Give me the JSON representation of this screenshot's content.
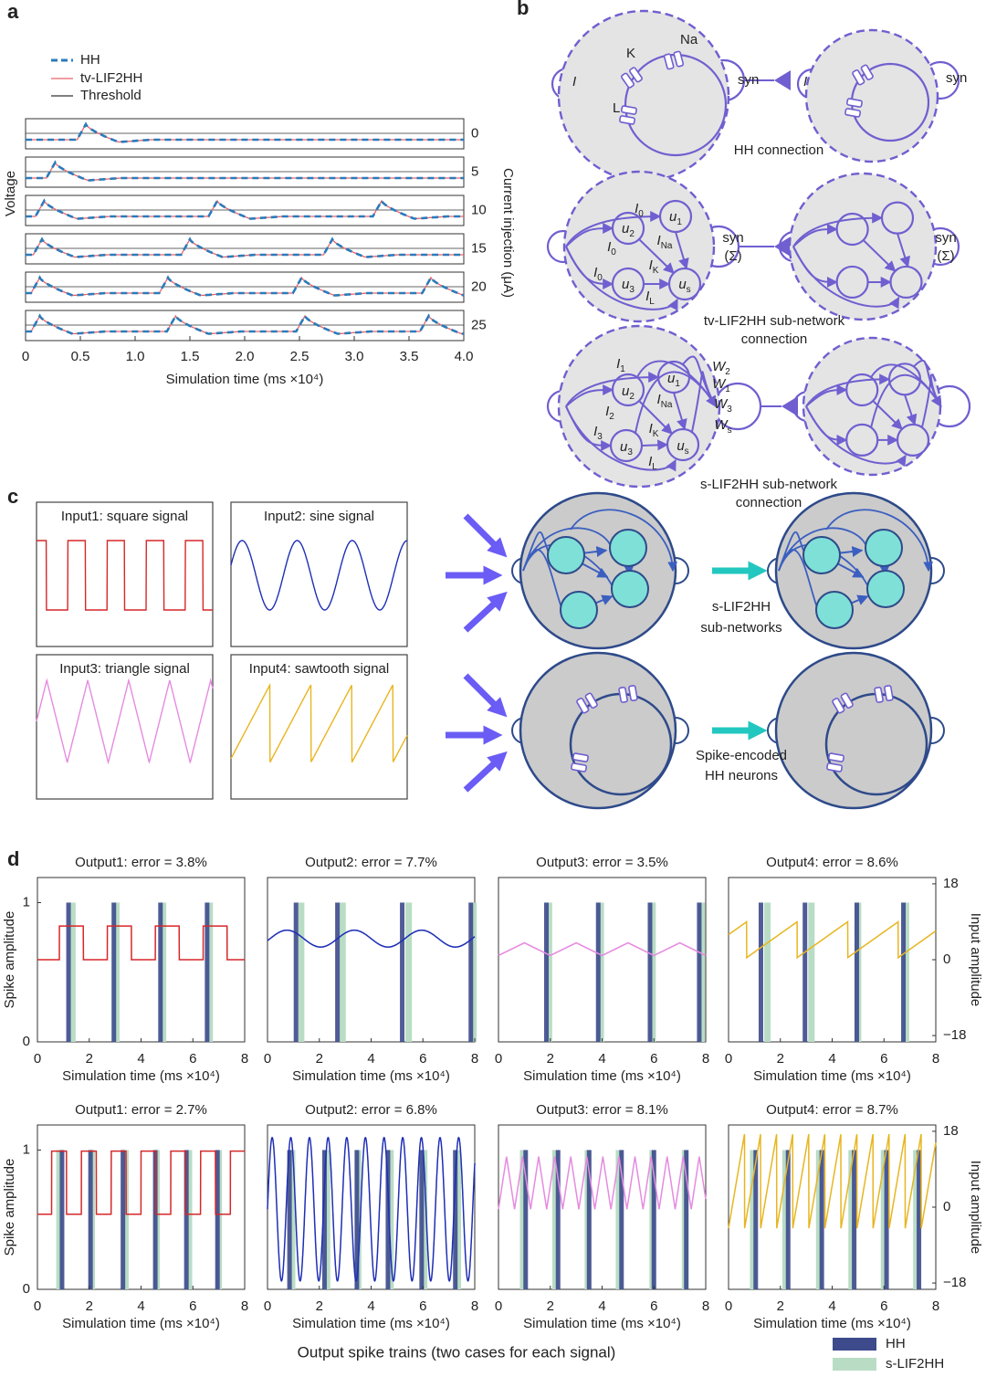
{
  "panel_labels": [
    "a",
    "b",
    "c",
    "d"
  ],
  "chart_data": [
    {
      "type": "line",
      "ylabel": "Voltage",
      "xlabel": "Simulation time (ms ×10⁴)",
      "y2label": "Current injection (μA)",
      "xlim": [
        0,
        4
      ],
      "xticks": [
        0,
        0.5,
        {
          "value": 1,
          "label": "1.0"
        },
        1.5,
        {
          "value": 2,
          "label": "2.0"
        },
        2.5,
        {
          "value": 3,
          "label": "3.0"
        },
        3.5,
        {
          "value": 4,
          "label": "4.0"
        }
      ],
      "series": [
        {
          "name": "HH",
          "color": "#2b7bba"
        },
        {
          "name": "tv-LIF2HH",
          "color": "#e8636b"
        },
        {
          "name": "Threshold",
          "color": "#333333"
        }
      ],
      "currents": [
        0,
        5,
        10,
        15,
        20,
        25
      ],
      "spike_times": [
        [
          0.55
        ],
        [
          0.27
        ],
        [
          0.17,
          1.75,
          3.25
        ],
        [
          0.15,
          1.5,
          2.8
        ],
        [
          0.13,
          1.3,
          2.52,
          3.7
        ],
        [
          0.13,
          1.37,
          2.55,
          3.68
        ]
      ]
    },
    {
      "type": "spike-train",
      "title": "Output1: error = 3.8%",
      "xlabel": "Simulation time (ms ×10⁴)",
      "ylabel": "Spike amplitude",
      "xlim": [
        0,
        8
      ],
      "xticks": [
        0,
        2,
        4,
        6,
        8
      ],
      "ylim": [
        0,
        1.18
      ],
      "yticks": [
        0,
        1
      ],
      "y2lim": [
        -19.5,
        19.5
      ],
      "series": [
        {
          "name": "HH",
          "color": "#3d4a8c",
          "x": [
            1.2,
            2.95,
            4.75,
            6.55
          ],
          "values": [
            1,
            1,
            1,
            1
          ]
        },
        {
          "name": "s-LIF2HH",
          "color": "#b9dcc5",
          "x": [
            1.35,
            3.05,
            4.85,
            6.65
          ],
          "values": [
            1,
            1,
            1,
            1
          ]
        }
      ],
      "input": {
        "shape": "square",
        "color": "#d62728",
        "low": 0,
        "high": 8,
        "period": 1.85,
        "phase": 0.85,
        "axis": "y2"
      }
    },
    {
      "type": "spike-train",
      "title": "Output2: error = 7.7%",
      "xlabel": "Simulation time (ms ×10⁴)",
      "xlim": [
        0,
        8
      ],
      "xticks": [
        0,
        2,
        4,
        6,
        8
      ],
      "ylim": [
        0,
        1.18
      ],
      "y2lim": [
        -19.5,
        19.5
      ],
      "series": [
        {
          "name": "HH",
          "color": "#3d4a8c",
          "x": [
            1.1,
            2.7,
            5.2,
            7.85
          ],
          "values": [
            1,
            1,
            1,
            1
          ]
        },
        {
          "name": "s-LIF2HH",
          "color": "#b9dcc5",
          "x": [
            1.3,
            2.9,
            5.45,
            7.95
          ],
          "values": [
            1,
            1,
            1,
            1
          ]
        }
      ],
      "input": {
        "shape": "sine",
        "color": "#1f2fb5",
        "low": 3,
        "high": 7,
        "period": 2.6,
        "phase": 0.1,
        "axis": "y2"
      }
    },
    {
      "type": "spike-train",
      "title": "Output3: error = 3.5%",
      "xlabel": "Simulation time (ms ×10⁴)",
      "xlim": [
        0,
        8
      ],
      "xticks": [
        0,
        2,
        4,
        6,
        8
      ],
      "ylim": [
        0,
        1.18
      ],
      "y2lim": [
        -19.5,
        19.5
      ],
      "series": [
        {
          "name": "HH",
          "color": "#3d4a8c",
          "x": [
            1.85,
            3.85,
            5.85,
            7.75
          ],
          "values": [
            1,
            1,
            1,
            1
          ]
        },
        {
          "name": "s-LIF2HH",
          "color": "#b9dcc5",
          "x": [
            1.95,
            3.95,
            5.95,
            7.85
          ],
          "values": [
            1,
            1,
            1,
            1
          ]
        }
      ],
      "input": {
        "shape": "triangle",
        "color": "#e58be0",
        "low": 1,
        "high": 4,
        "period": 2.0,
        "phase": 0,
        "axis": "y2"
      }
    },
    {
      "type": "spike-train",
      "title": "Output4: error = 8.6%",
      "xlabel": "Simulation time (ms ×10⁴)",
      "y2label": "Input amplitude",
      "xlim": [
        0,
        8
      ],
      "xticks": [
        0,
        2,
        4,
        6,
        8
      ],
      "ylim": [
        0,
        1.18
      ],
      "y2lim": [
        -19.5,
        19.5
      ],
      "y2ticks": [
        {
          "value": -18,
          "label": "−18"
        },
        0,
        18
      ],
      "series": [
        {
          "name": "HH",
          "color": "#3d4a8c",
          "x": [
            1.25,
            2.95,
            4.95,
            6.75
          ],
          "values": [
            1,
            1,
            1,
            1
          ]
        },
        {
          "name": "s-LIF2HH",
          "color": "#b9dcc5",
          "x": [
            1.5,
            3.2,
            5.0,
            6.85
          ],
          "values": [
            1,
            1,
            1,
            1
          ]
        }
      ],
      "input": {
        "shape": "sawtooth",
        "color": "#e8b520",
        "low": 0.5,
        "high": 9,
        "period": 1.95,
        "phase": 0.7,
        "axis": "y2"
      }
    },
    {
      "type": "spike-train",
      "title": "Output1: error = 2.7%",
      "xlabel": "Simulation time (ms ×10⁴)",
      "ylabel": "Spike amplitude",
      "xlim": [
        0,
        8
      ],
      "xticks": [
        0,
        2,
        4,
        6,
        8
      ],
      "ylim": [
        0,
        1.18
      ],
      "yticks": [
        0,
        1
      ],
      "y2lim": [
        -19.5,
        19.5
      ],
      "series": [
        {
          "name": "HH",
          "color": "#3d4a8c",
          "x": [
            0.95,
            2.05,
            3.3,
            4.55,
            5.75,
            6.95
          ],
          "values": [
            1,
            1,
            1,
            1,
            1,
            1
          ]
        },
        {
          "name": "s-LIF2HH",
          "color": "#b9dcc5",
          "x": [
            0.85,
            2.1,
            3.4,
            4.6,
            5.85,
            7.0
          ],
          "values": [
            1,
            1,
            1,
            1,
            1,
            1
          ]
        }
      ],
      "input": {
        "shape": "square",
        "color": "#d62728",
        "low": -1.7,
        "high": 13.3,
        "period": 1.15,
        "phase": 0.55,
        "axis": "y2"
      }
    },
    {
      "type": "spike-train",
      "title": "Output2: error = 6.8%",
      "xlabel": "Simulation time (ms ×10⁴)",
      "xlim": [
        0,
        8
      ],
      "xticks": [
        0,
        2,
        4,
        6,
        8
      ],
      "ylim": [
        0,
        1.18
      ],
      "y2lim": [
        -19.5,
        19.5
      ],
      "series": [
        {
          "name": "HH",
          "color": "#3d4a8c",
          "x": [
            0.85,
            2.2,
            3.45,
            4.65,
            5.95,
            7.25
          ],
          "values": [
            1,
            1,
            1,
            1,
            1,
            1
          ]
        },
        {
          "name": "s-LIF2HH",
          "color": "#b9dcc5",
          "x": [
            0.95,
            2.3,
            3.5,
            4.75,
            6.05,
            7.35
          ],
          "values": [
            1,
            1,
            1,
            1,
            1,
            1
          ]
        }
      ],
      "input": {
        "shape": "sine",
        "color": "#1f2fb5",
        "low": -17.5,
        "high": 16.5,
        "period": 0.72,
        "phase": 0,
        "axis": "y2"
      }
    },
    {
      "type": "spike-train",
      "title": "Output3: error = 8.1%",
      "xlabel": "Simulation time (ms ×10⁴)",
      "xlim": [
        0,
        8
      ],
      "xticks": [
        0,
        2,
        4,
        6,
        8
      ],
      "ylim": [
        0,
        1.18
      ],
      "y2lim": [
        -19.5,
        19.5
      ],
      "series": [
        {
          "name": "HH",
          "color": "#3d4a8c",
          "x": [
            1.05,
            2.3,
            3.5,
            4.75,
            6.0,
            7.25
          ],
          "values": [
            1,
            1,
            1,
            1,
            1,
            1
          ]
        },
        {
          "name": "s-LIF2HH",
          "color": "#b9dcc5",
          "x": [
            0.95,
            2.2,
            3.45,
            4.65,
            5.95,
            7.2
          ],
          "values": [
            1,
            1,
            1,
            1,
            1,
            1
          ]
        }
      ],
      "input": {
        "shape": "triangle",
        "color": "#e58be0",
        "low": -0.5,
        "high": 12,
        "period": 0.62,
        "phase": 0,
        "axis": "y2"
      }
    },
    {
      "type": "spike-train",
      "title": "Output4: error = 8.7%",
      "xlabel": "Simulation time (ms ×10⁴)",
      "y2label": "Input amplitude",
      "xlim": [
        0,
        8
      ],
      "xticks": [
        0,
        2,
        4,
        6,
        8
      ],
      "ylim": [
        0,
        1.18
      ],
      "y2lim": [
        -19.5,
        19.5
      ],
      "y2ticks": [
        {
          "value": -18,
          "label": "−18"
        },
        0,
        18
      ],
      "series": [
        {
          "name": "HH",
          "color": "#3d4a8c",
          "x": [
            1.05,
            2.3,
            3.6,
            4.85,
            6.1,
            7.35
          ],
          "values": [
            1,
            1,
            1,
            1,
            1,
            1
          ]
        },
        {
          "name": "s-LIF2HH",
          "color": "#b9dcc5",
          "x": [
            0.95,
            2.2,
            3.5,
            4.75,
            6.0,
            7.25
          ],
          "values": [
            1,
            1,
            1,
            1,
            1,
            1
          ]
        }
      ],
      "input": {
        "shape": "sawtooth",
        "color": "#e8b520",
        "low": -5,
        "high": 17.5,
        "period": 0.62,
        "phase": 0,
        "axis": "y2"
      }
    }
  ],
  "diagram_b": {
    "labels": [
      "K",
      "Na",
      "L",
      "I",
      "syn",
      "HH connection",
      "I",
      "syn",
      {
        "base": "I",
        "sub": "0"
      },
      {
        "base": "u",
        "sub": "2"
      },
      {
        "base": "u",
        "sub": "1"
      },
      {
        "base": "I",
        "sub": "0"
      },
      {
        "base": "I",
        "sub": "Na"
      },
      {
        "base": "I",
        "sub": "0"
      },
      {
        "base": "I",
        "sub": "K"
      },
      {
        "base": "u",
        "sub": "3"
      },
      {
        "base": "u",
        "sub": "s"
      },
      {
        "base": "I",
        "sub": "L"
      },
      "syn",
      "(Σ)",
      "syn",
      "(Σ)",
      "tv-LIF2HH sub-network",
      "connection",
      {
        "base": "I",
        "sub": "1"
      },
      {
        "base": "u",
        "sub": "1"
      },
      {
        "base": "u",
        "sub": "2"
      },
      {
        "base": "I",
        "sub": "2"
      },
      {
        "base": "I",
        "sub": "Na"
      },
      {
        "base": "I",
        "sub": "3"
      },
      {
        "base": "I",
        "sub": "K"
      },
      {
        "base": "u",
        "sub": "3"
      },
      {
        "base": "u",
        "sub": "s"
      },
      {
        "base": "I",
        "sub": "L"
      },
      {
        "base": "W",
        "sub": "2"
      },
      {
        "base": "W",
        "sub": "1"
      },
      {
        "base": "W",
        "sub": "3"
      },
      {
        "base": "W",
        "sub": "s"
      },
      "s-LIF2HH sub-network",
      "connection"
    ]
  },
  "diagram_c": {
    "labels": [
      "Input1: square signal",
      "Input2: sine signal",
      "Input3: triangle signal",
      "Input4: sawtooth signal",
      "s-LIF2HH",
      "sub-networks",
      "Spike-encoded",
      "HH neurons"
    ]
  },
  "caption_d": "Output spike trains (two cases for each signal)"
}
